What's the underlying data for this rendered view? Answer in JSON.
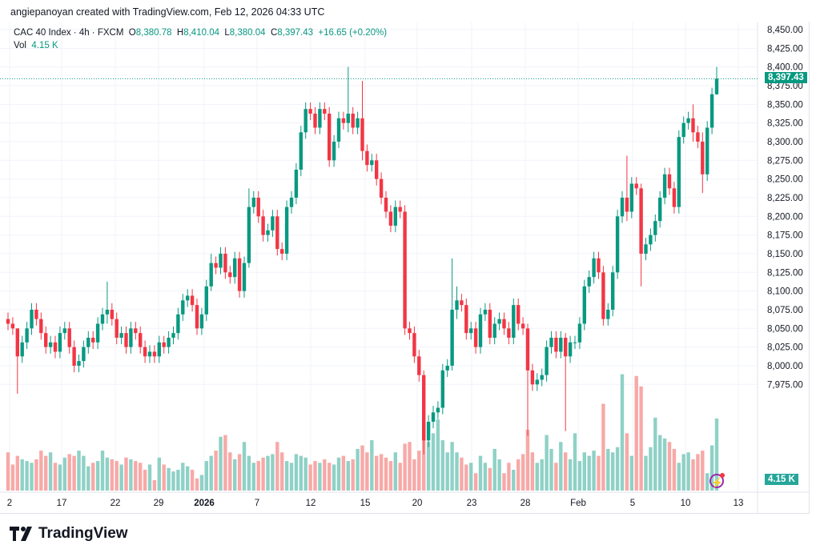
{
  "credit": "angiepanoyan created with TradingView.com, Feb 12, 2026 04:33 UTC",
  "legend": {
    "symbol": "CAC 40 Index · 4h · FXCM",
    "o_label": "O",
    "o": "8,380.78",
    "h_label": "H",
    "h": "8,410.04",
    "l_label": "L",
    "l": "8,380.04",
    "c_label": "C",
    "c": "8,397.43",
    "change": "+16.65 (+0.20%)",
    "vol_label": "Vol",
    "vol": "4.15 K"
  },
  "price_tag": "8,397.43",
  "vol_tag": "4.15 K",
  "logo": "TradingView",
  "colors": {
    "up": "#089981",
    "down": "#f23645",
    "up_vol": "#8fd1c6",
    "down_vol": "#f7a9a7"
  },
  "price_axis": [
    "8,450.00",
    "8,425.00",
    "8,400.00",
    "8,375.00",
    "8,350.00",
    "8,325.00",
    "8,300.00",
    "8,275.00",
    "8,250.00",
    "8,225.00",
    "8,200.00",
    "8,175.00",
    "8,150.00",
    "8,125.00",
    "8,100.00",
    "8,075.00",
    "8,050.00",
    "8,025.00",
    "8,000.00",
    "7,975.00"
  ],
  "date_axis": [
    "2",
    "17",
    "22",
    "29",
    "2026",
    "7",
    "12",
    "15",
    "20",
    "23",
    "28",
    "Feb",
    "5",
    "10",
    "13"
  ],
  "chart_data": {
    "type": "candlestick",
    "ylim": [
      7975,
      8450
    ],
    "first_open": 8140,
    "default_wick": 7,
    "close": [
      8135,
      8130,
      8100,
      8115,
      8130,
      8150,
      8140,
      8125,
      8110,
      8115,
      8105,
      8125,
      8130,
      8110,
      8090,
      8095,
      8110,
      8120,
      8115,
      8135,
      8145,
      8150,
      8140,
      8120,
      8125,
      8110,
      8130,
      8125,
      8110,
      8100,
      8105,
      8100,
      8115,
      8110,
      8120,
      8125,
      8145,
      8160,
      8165,
      8155,
      8130,
      8145,
      8175,
      8200,
      8195,
      8210,
      8190,
      8185,
      8205,
      8170,
      8200,
      8260,
      8270,
      8250,
      8230,
      8235,
      8250,
      8215,
      8210,
      8260,
      8270,
      8300,
      8340,
      8365,
      8360,
      8345,
      8365,
      8360,
      8310,
      8330,
      8355,
      8350,
      8360,
      8345,
      8355,
      8320,
      8305,
      8310,
      8290,
      8270,
      8255,
      8240,
      8260,
      8255,
      8130,
      8125,
      8100,
      8080,
      8010,
      8030,
      8040,
      8045,
      8085,
      8090,
      8150,
      8160,
      8155,
      8125,
      8130,
      8110,
      8145,
      8150,
      8120,
      8135,
      8140,
      8130,
      8120,
      8155,
      8135,
      8130,
      8085,
      8070,
      8075,
      8080,
      8110,
      8120,
      8105,
      8120,
      8100,
      8115,
      8115,
      8135,
      8175,
      8185,
      8205,
      8190,
      8140,
      8150,
      8190,
      8250,
      8270,
      8255,
      8285,
      8280,
      8210,
      8220,
      8230,
      8245,
      8270,
      8295,
      8280,
      8260,
      8335,
      8350,
      8355,
      8340,
      8330,
      8295,
      8345,
      8380.78,
      8397.43
    ],
    "wick_exceptions": {
      "2": [
        8112,
        8060
      ],
      "21": [
        8180,
        8135
      ],
      "43": [
        8210,
        8170
      ],
      "51": [
        8280,
        8195
      ],
      "72": [
        8410,
        8340
      ],
      "75": [
        8395,
        8310
      ],
      "88": [
        8085,
        7995
      ],
      "94": [
        8205,
        8085
      ],
      "95": [
        8175,
        8140
      ],
      "110": [
        8135,
        8015
      ],
      "118": [
        8125,
        8020
      ],
      "131": [
        8315,
        8245
      ],
      "134": [
        8285,
        8175
      ],
      "145": [
        8370,
        8330
      ],
      "147": [
        8340,
        8275
      ],
      "150": [
        8410.04,
        8380.04
      ]
    },
    "volume_k": [
      2.2,
      1.5,
      2.0,
      1.8,
      1.7,
      1.6,
      1.8,
      2.3,
      2.0,
      2.2,
      1.6,
      1.5,
      1.9,
      2.1,
      2.0,
      2.3,
      2.0,
      1.4,
      1.6,
      1.7,
      2.3,
      1.9,
      1.8,
      1.7,
      1.5,
      1.9,
      1.8,
      1.7,
      1.6,
      1.2,
      1.5,
      0.6,
      1.9,
      1.5,
      1.3,
      1.1,
      1.2,
      1.6,
      1.4,
      1.2,
      0.7,
      0.9,
      1.7,
      2.0,
      2.3,
      3.1,
      3.2,
      2.2,
      1.8,
      2.1,
      2.8,
      2.0,
      1.6,
      1.7,
      1.9,
      2.0,
      2.1,
      2.8,
      2.2,
      1.7,
      1.6,
      2.1,
      2.0,
      1.9,
      1.5,
      1.7,
      1.6,
      1.8,
      1.6,
      1.5,
      1.9,
      2.0,
      1.7,
      1.8,
      2.4,
      2.6,
      2.2,
      2.9,
      2.0,
      2.1,
      1.9,
      1.7,
      2.2,
      1.6,
      2.7,
      2.8,
      1.8,
      2.3,
      3.7,
      2.8,
      3.3,
      4.1,
      2.9,
      2.2,
      2.8,
      2.2,
      1.9,
      1.5,
      1.6,
      1.0,
      2.0,
      1.6,
      1.3,
      2.4,
      1.8,
      1.0,
      1.6,
      1.2,
      1.8,
      2.1,
      3.5,
      2.2,
      1.6,
      1.8,
      3.2,
      2.4,
      1.6,
      2.8,
      2.2,
      1.8,
      3.3,
      1.7,
      2.2,
      2.0,
      2.3,
      2.0,
      5.0,
      2.4,
      2.2,
      2.5,
      6.7,
      3.3,
      2.0,
      6.6,
      6.0,
      2.0,
      2.5,
      4.2,
      3.2,
      3.0,
      2.8,
      2.4,
      1.6,
      2.1,
      2.2,
      1.8,
      2.1,
      2.3,
      1.0,
      2.6,
      4.15
    ]
  }
}
